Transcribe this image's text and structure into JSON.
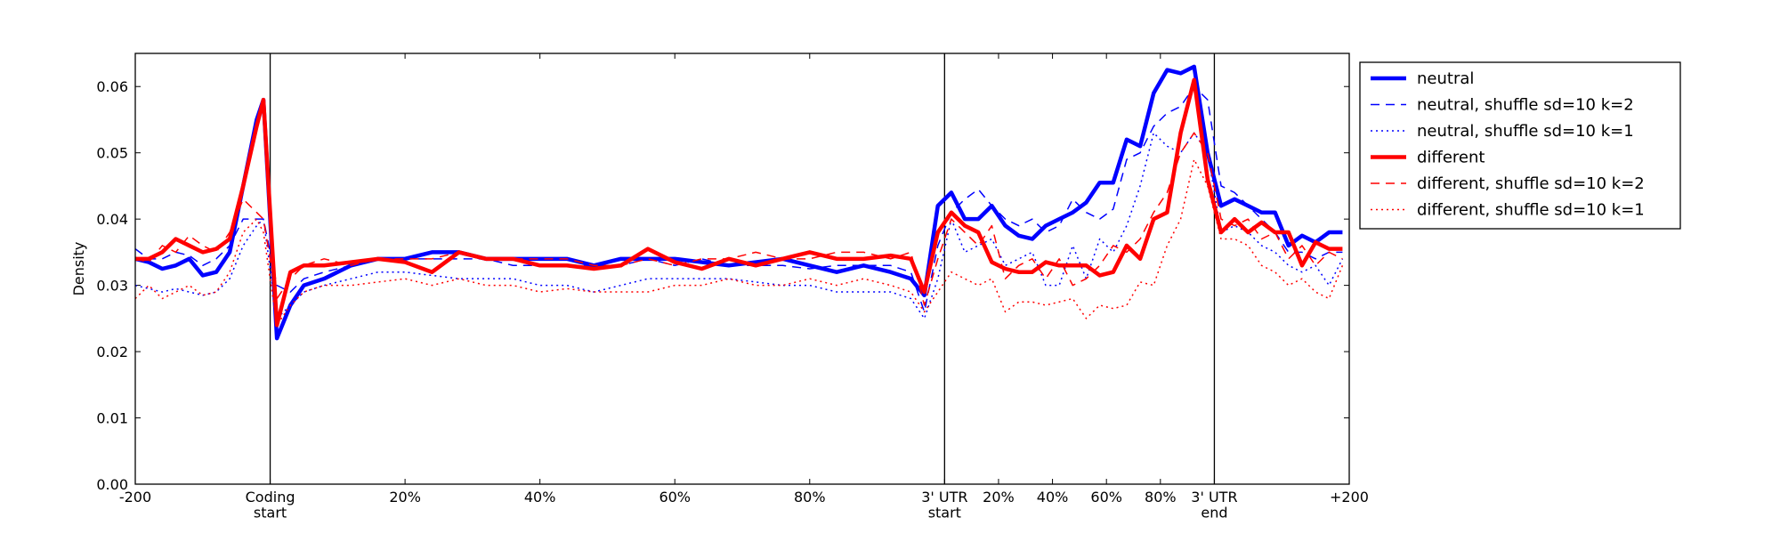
{
  "chart_data": {
    "type": "line",
    "ylabel": "Density",
    "xlim": [
      0,
      90
    ],
    "ylim": [
      0,
      0.065
    ],
    "xticks": [
      {
        "value": 0,
        "label": "-200"
      },
      {
        "value": 10,
        "label": "Coding\nstart"
      },
      {
        "value": 20,
        "label": "20%"
      },
      {
        "value": 30,
        "label": "40%"
      },
      {
        "value": 40,
        "label": "60%"
      },
      {
        "value": 50,
        "label": "80%"
      },
      {
        "value": 60,
        "label": "3' UTR\nstart"
      },
      {
        "value": 64,
        "label": "20%"
      },
      {
        "value": 68,
        "label": "40%"
      },
      {
        "value": 72,
        "label": "60%"
      },
      {
        "value": 76,
        "label": "80%"
      },
      {
        "value": 80,
        "label": "3' UTR\nend"
      },
      {
        "value": 90,
        "label": "+200"
      }
    ],
    "yticks": [
      {
        "value": 0,
        "label": "0.00"
      },
      {
        "value": 0.01,
        "label": "0.01"
      },
      {
        "value": 0.02,
        "label": "0.02"
      },
      {
        "value": 0.03,
        "label": "0.03"
      },
      {
        "value": 0.04,
        "label": "0.04"
      },
      {
        "value": 0.05,
        "label": "0.05"
      },
      {
        "value": 0.06,
        "label": "0.06"
      }
    ],
    "vlines": [
      10,
      60,
      80
    ],
    "legend": "outside-upper-right",
    "x": [
      0,
      1,
      2,
      3,
      4,
      5,
      6,
      7,
      8,
      9,
      9.5,
      10.5,
      11.5,
      12.5,
      14,
      16,
      18,
      20,
      22,
      24,
      26,
      28,
      30,
      32,
      34,
      36,
      38,
      40,
      42,
      44,
      46,
      48,
      50,
      52,
      54,
      56,
      57.5,
      58.5,
      59.5,
      60.5,
      61.5,
      62.5,
      63.5,
      64.5,
      65.5,
      66.5,
      67.5,
      68.5,
      69.5,
      70.5,
      71.5,
      72.5,
      73.5,
      74.5,
      75.5,
      76.5,
      77.5,
      78.5,
      79.5,
      80.5,
      81.5,
      82.5,
      83.5,
      84.5,
      85.5,
      86.5,
      87.5,
      88.5,
      89.5
    ],
    "series": [
      {
        "name": "neutral",
        "color": "#0000ff",
        "style": "solid",
        "values": [
          0.034,
          0.0335,
          0.0325,
          0.033,
          0.034,
          0.0315,
          0.032,
          0.035,
          0.045,
          0.055,
          0.058,
          0.022,
          0.027,
          0.03,
          0.031,
          0.033,
          0.034,
          0.034,
          0.035,
          0.035,
          0.034,
          0.034,
          0.034,
          0.034,
          0.033,
          0.034,
          0.034,
          0.034,
          0.0335,
          0.033,
          0.0335,
          0.034,
          0.033,
          0.032,
          0.033,
          0.032,
          0.031,
          0.0285,
          0.042,
          0.044,
          0.04,
          0.04,
          0.042,
          0.039,
          0.0375,
          0.037,
          0.039,
          0.04,
          0.041,
          0.0425,
          0.0455,
          0.0455,
          0.052,
          0.051,
          0.059,
          0.0625,
          0.062,
          0.063,
          0.05,
          0.042,
          0.043,
          0.042,
          0.041,
          0.041,
          0.036,
          0.0375,
          0.0365,
          0.038,
          0.038
        ]
      },
      {
        "name": "neutral, shuffle sd=10 k=2",
        "color": "#0000ff",
        "style": "dashed",
        "values": [
          0.0355,
          0.034,
          0.034,
          0.035,
          0.0345,
          0.033,
          0.034,
          0.036,
          0.04,
          0.04,
          0.04,
          0.03,
          0.029,
          0.031,
          0.032,
          0.033,
          0.034,
          0.034,
          0.034,
          0.034,
          0.034,
          0.033,
          0.033,
          0.033,
          0.033,
          0.033,
          0.034,
          0.033,
          0.034,
          0.033,
          0.033,
          0.033,
          0.0325,
          0.033,
          0.033,
          0.033,
          0.032,
          0.026,
          0.036,
          0.041,
          0.043,
          0.0445,
          0.042,
          0.04,
          0.039,
          0.04,
          0.038,
          0.039,
          0.043,
          0.041,
          0.04,
          0.0415,
          0.049,
          0.05,
          0.054,
          0.056,
          0.057,
          0.06,
          0.058,
          0.045,
          0.044,
          0.042,
          0.04,
          0.038,
          0.035,
          0.035,
          0.034,
          0.035,
          0.035
        ]
      },
      {
        "name": "neutral, shuffle sd=10 k=1",
        "color": "#0000ff",
        "style": "dotted",
        "values": [
          0.03,
          0.0295,
          0.029,
          0.0295,
          0.029,
          0.0285,
          0.029,
          0.031,
          0.036,
          0.039,
          0.04,
          0.025,
          0.027,
          0.029,
          0.03,
          0.031,
          0.032,
          0.032,
          0.0315,
          0.031,
          0.031,
          0.031,
          0.03,
          0.03,
          0.029,
          0.03,
          0.031,
          0.031,
          0.031,
          0.031,
          0.0305,
          0.03,
          0.03,
          0.029,
          0.029,
          0.029,
          0.028,
          0.025,
          0.031,
          0.04,
          0.035,
          0.036,
          0.037,
          0.033,
          0.034,
          0.035,
          0.03,
          0.03,
          0.036,
          0.031,
          0.037,
          0.035,
          0.039,
          0.045,
          0.053,
          0.051,
          0.05,
          0.053,
          0.05,
          0.038,
          0.039,
          0.038,
          0.036,
          0.035,
          0.033,
          0.032,
          0.033,
          0.03,
          0.034
        ]
      },
      {
        "name": "different",
        "color": "#ff0000",
        "style": "solid",
        "values": [
          0.034,
          0.034,
          0.035,
          0.037,
          0.036,
          0.035,
          0.0355,
          0.037,
          0.045,
          0.054,
          0.058,
          0.024,
          0.032,
          0.033,
          0.033,
          0.0335,
          0.034,
          0.0335,
          0.032,
          0.035,
          0.034,
          0.034,
          0.033,
          0.033,
          0.0325,
          0.033,
          0.0355,
          0.0335,
          0.0325,
          0.034,
          0.033,
          0.034,
          0.035,
          0.034,
          0.034,
          0.0345,
          0.034,
          0.029,
          0.038,
          0.041,
          0.039,
          0.038,
          0.0335,
          0.0325,
          0.032,
          0.032,
          0.0335,
          0.033,
          0.033,
          0.033,
          0.0315,
          0.032,
          0.036,
          0.034,
          0.04,
          0.041,
          0.053,
          0.061,
          0.046,
          0.038,
          0.04,
          0.038,
          0.0395,
          0.038,
          0.038,
          0.033,
          0.0365,
          0.0355,
          0.0355
        ]
      },
      {
        "name": "different, shuffle sd=10 k=2",
        "color": "#ff0000",
        "style": "dashed",
        "values": [
          0.034,
          0.0335,
          0.036,
          0.035,
          0.0375,
          0.036,
          0.035,
          0.038,
          0.043,
          0.041,
          0.04,
          0.028,
          0.031,
          0.033,
          0.034,
          0.033,
          0.034,
          0.034,
          0.034,
          0.035,
          0.034,
          0.034,
          0.034,
          0.034,
          0.033,
          0.033,
          0.034,
          0.033,
          0.034,
          0.034,
          0.035,
          0.034,
          0.034,
          0.035,
          0.035,
          0.034,
          0.035,
          0.027,
          0.034,
          0.04,
          0.038,
          0.036,
          0.039,
          0.031,
          0.033,
          0.034,
          0.031,
          0.034,
          0.03,
          0.031,
          0.033,
          0.036,
          0.035,
          0.037,
          0.041,
          0.044,
          0.05,
          0.053,
          0.05,
          0.04,
          0.039,
          0.04,
          0.037,
          0.038,
          0.034,
          0.036,
          0.033,
          0.035,
          0.034
        ]
      },
      {
        "name": "different, shuffle sd=10 k=1",
        "color": "#ff0000",
        "style": "dotted",
        "values": [
          0.028,
          0.03,
          0.028,
          0.029,
          0.03,
          0.0285,
          0.029,
          0.032,
          0.038,
          0.04,
          0.038,
          0.024,
          0.027,
          0.029,
          0.03,
          0.03,
          0.0305,
          0.031,
          0.03,
          0.031,
          0.03,
          0.03,
          0.029,
          0.0295,
          0.029,
          0.029,
          0.029,
          0.03,
          0.03,
          0.031,
          0.03,
          0.03,
          0.031,
          0.03,
          0.031,
          0.03,
          0.029,
          0.026,
          0.029,
          0.032,
          0.031,
          0.03,
          0.031,
          0.026,
          0.0275,
          0.0275,
          0.027,
          0.0275,
          0.028,
          0.025,
          0.027,
          0.0265,
          0.027,
          0.0305,
          0.03,
          0.036,
          0.04,
          0.049,
          0.045,
          0.037,
          0.037,
          0.036,
          0.033,
          0.032,
          0.03,
          0.031,
          0.029,
          0.028,
          0.033
        ]
      }
    ]
  }
}
